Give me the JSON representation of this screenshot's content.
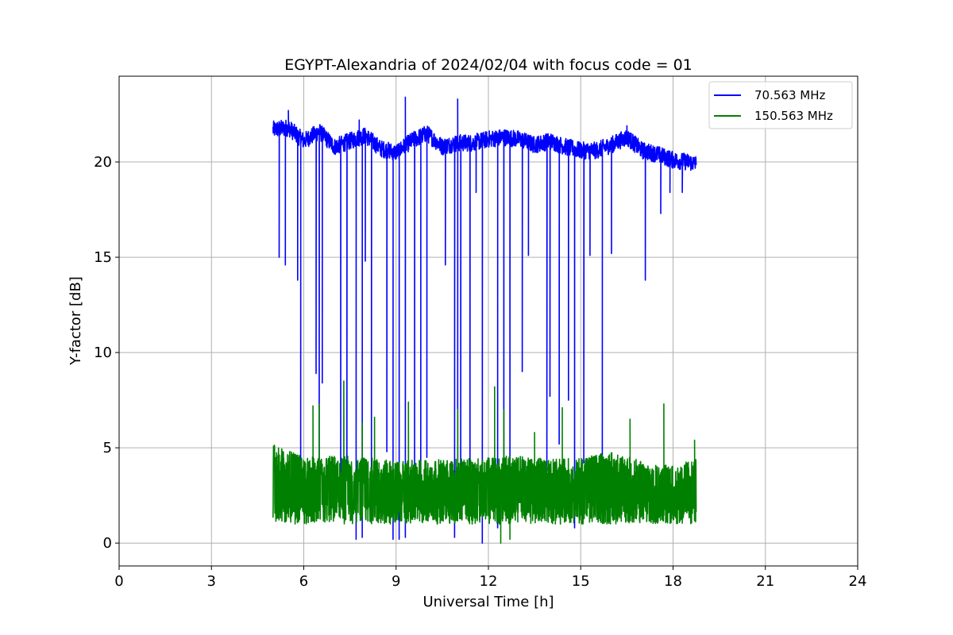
{
  "chart_data": {
    "type": "line",
    "title": "EGYPT-Alexandria of 2024/02/04 with focus code = 01",
    "xlabel": "Universal Time [h]",
    "ylabel": "Y-factor [dB]",
    "xlim": [
      0,
      24
    ],
    "ylim": [
      -1.2,
      24.5
    ],
    "xticks": [
      0,
      3,
      6,
      9,
      12,
      15,
      18,
      21,
      24
    ],
    "xtick_labels": [
      "0",
      "3",
      "6",
      "9",
      "12",
      "15",
      "18",
      "21",
      "24"
    ],
    "yticks": [
      0,
      5,
      10,
      15,
      20
    ],
    "ytick_labels": [
      "0",
      "5",
      "10",
      "15",
      "20"
    ],
    "grid": true,
    "legend_position": "top-right",
    "series": [
      {
        "name": "70.563 MHz",
        "color": "#0000ff",
        "x_range": [
          5.0,
          18.75
        ],
        "baseline": [
          [
            5.0,
            21.7
          ],
          [
            5.5,
            21.8
          ],
          [
            6.0,
            21.1
          ],
          [
            6.5,
            21.6
          ],
          [
            7.0,
            20.8
          ],
          [
            7.5,
            21.1
          ],
          [
            8.0,
            21.4
          ],
          [
            8.5,
            20.7
          ],
          [
            9.0,
            20.5
          ],
          [
            9.5,
            21.1
          ],
          [
            10.0,
            21.5
          ],
          [
            10.5,
            20.8
          ],
          [
            11.0,
            21.0
          ],
          [
            11.5,
            21.0
          ],
          [
            12.0,
            21.2
          ],
          [
            12.5,
            21.3
          ],
          [
            13.0,
            21.2
          ],
          [
            13.5,
            20.9
          ],
          [
            14.0,
            21.1
          ],
          [
            14.5,
            20.8
          ],
          [
            15.0,
            20.6
          ],
          [
            15.5,
            20.6
          ],
          [
            16.0,
            20.9
          ],
          [
            16.5,
            21.3
          ],
          [
            17.0,
            20.6
          ],
          [
            17.5,
            20.4
          ],
          [
            18.0,
            20.1
          ],
          [
            18.5,
            20.0
          ],
          [
            18.75,
            19.9
          ]
        ],
        "dips": [
          [
            5.2,
            15.0
          ],
          [
            5.4,
            14.6
          ],
          [
            5.8,
            13.8
          ],
          [
            5.9,
            4.0
          ],
          [
            6.4,
            8.9
          ],
          [
            6.5,
            2.2
          ],
          [
            6.6,
            8.4
          ],
          [
            7.2,
            2.5
          ],
          [
            7.4,
            3.5
          ],
          [
            7.7,
            0.2
          ],
          [
            7.9,
            0.3
          ],
          [
            8.0,
            14.8
          ],
          [
            8.2,
            3.4
          ],
          [
            8.7,
            4.8
          ],
          [
            8.9,
            0.2
          ],
          [
            9.1,
            0.2
          ],
          [
            9.3,
            0.3
          ],
          [
            9.6,
            1.7
          ],
          [
            9.8,
            3.2
          ],
          [
            10.0,
            4.5
          ],
          [
            10.6,
            14.6
          ],
          [
            10.9,
            0.3
          ],
          [
            11.0,
            4.2
          ],
          [
            11.1,
            1.7
          ],
          [
            11.4,
            2.0
          ],
          [
            11.6,
            18.4
          ],
          [
            11.8,
            0.0
          ],
          [
            12.3,
            0.8
          ],
          [
            12.5,
            3.2
          ],
          [
            12.7,
            2.0
          ],
          [
            13.1,
            9.0
          ],
          [
            13.3,
            15.1
          ],
          [
            13.9,
            3.8
          ],
          [
            14.0,
            7.7
          ],
          [
            14.3,
            5.2
          ],
          [
            14.6,
            7.5
          ],
          [
            14.8,
            0.8
          ],
          [
            15.1,
            4.2
          ],
          [
            15.3,
            15.1
          ],
          [
            15.7,
            3.0
          ],
          [
            16.0,
            15.2
          ],
          [
            17.1,
            13.8
          ],
          [
            17.6,
            17.3
          ],
          [
            17.9,
            18.4
          ],
          [
            18.3,
            18.4
          ]
        ],
        "peaks": [
          [
            5.5,
            22.7
          ],
          [
            7.8,
            22.2
          ],
          [
            9.3,
            23.4
          ],
          [
            11.0,
            23.3
          ],
          [
            16.5,
            21.9
          ]
        ]
      },
      {
        "name": "150.563 MHz",
        "color": "#008000",
        "x_range": [
          5.0,
          18.75
        ],
        "baseline": [
          [
            5.0,
            4.5
          ],
          [
            6.0,
            3.8
          ],
          [
            7.0,
            3.9
          ],
          [
            8.0,
            3.8
          ],
          [
            9.0,
            3.6
          ],
          [
            10.0,
            3.7
          ],
          [
            11.0,
            3.7
          ],
          [
            12.0,
            3.8
          ],
          [
            13.0,
            3.9
          ],
          [
            14.0,
            3.7
          ],
          [
            15.0,
            3.8
          ],
          [
            16.0,
            4.1
          ],
          [
            17.0,
            3.6
          ],
          [
            18.0,
            3.4
          ],
          [
            18.75,
            3.7
          ]
        ],
        "low_band": 1.0,
        "spikes": [
          [
            5.05,
            5.1
          ],
          [
            6.3,
            7.2
          ],
          [
            6.5,
            7.3
          ],
          [
            7.3,
            8.5
          ],
          [
            7.9,
            6.3
          ],
          [
            8.3,
            6.6
          ],
          [
            9.4,
            7.4
          ],
          [
            11.0,
            7.0
          ],
          [
            12.2,
            8.2
          ],
          [
            12.5,
            7.0
          ],
          [
            13.5,
            5.8
          ],
          [
            14.4,
            7.1
          ],
          [
            16.6,
            6.5
          ],
          [
            17.7,
            7.3
          ],
          [
            18.7,
            5.4
          ]
        ],
        "min_dips": [
          [
            12.4,
            0.0
          ],
          [
            12.7,
            0.2
          ]
        ]
      }
    ]
  }
}
